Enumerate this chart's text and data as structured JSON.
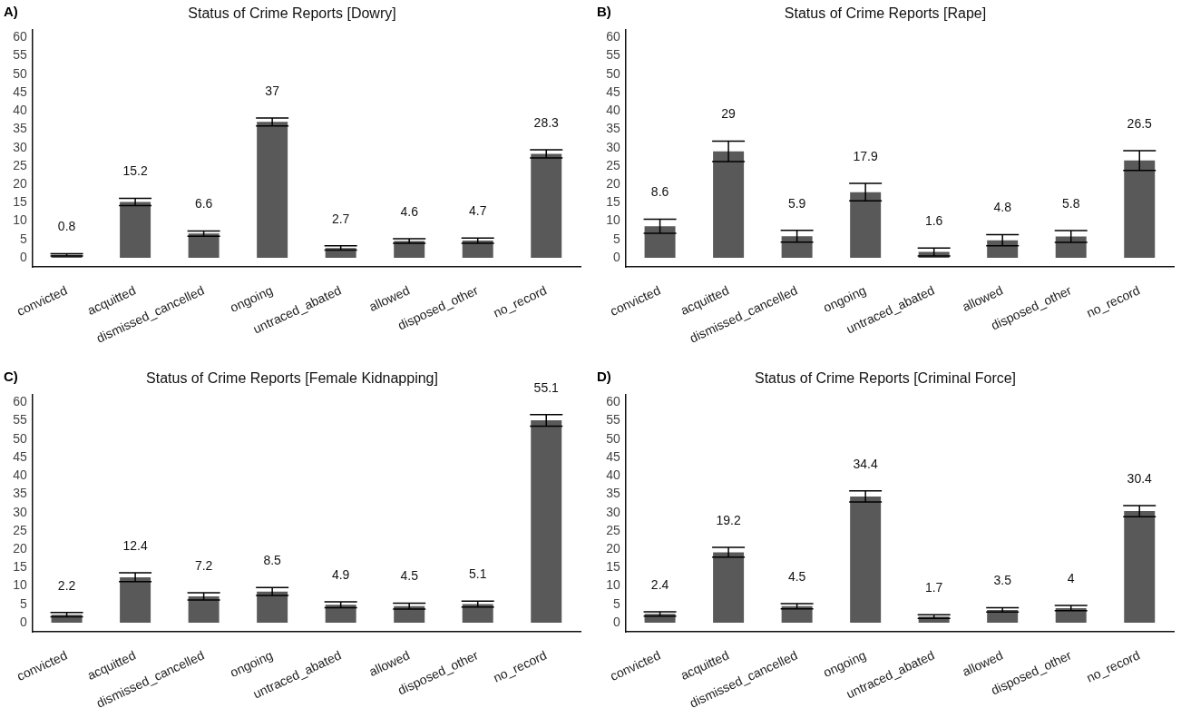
{
  "chart_data": [
    {
      "type": "bar",
      "title": "Status of Crime Reports [Dowry]",
      "annotations": [
        "A)"
      ],
      "categories": [
        "convicted",
        "acquitted",
        "dismissed_cancelled",
        "ongoing",
        "untraced_abated",
        "allowed",
        "disposed_other",
        "no_record"
      ],
      "color": "#595959",
      "values": [
        0.8,
        15.2,
        6.6,
        37,
        2.7,
        4.6,
        4.7,
        28.3
      ],
      "errors": [
        0.3,
        1.0,
        0.7,
        1.1,
        0.6,
        0.6,
        0.7,
        1.1
      ],
      "data_labels": true,
      "ylim": [
        -2.5,
        62
      ],
      "yticks": [
        0,
        5,
        10,
        15,
        20,
        25,
        30,
        35,
        40,
        45,
        50,
        55,
        60
      ],
      "grid": false,
      "legend": false
    },
    {
      "type": "bar",
      "title": "Status of Crime Reports [Rape]",
      "annotations": [
        "B)"
      ],
      "categories": [
        "convicted",
        "acquitted",
        "dismissed_cancelled",
        "ongoing",
        "untraced_abated",
        "allowed",
        "disposed_other",
        "no_record"
      ],
      "color": "#595959",
      "values": [
        8.6,
        29,
        5.9,
        17.9,
        1.6,
        4.8,
        5.8,
        26.5
      ],
      "errors": [
        1.9,
        2.8,
        1.6,
        2.4,
        1.1,
        1.5,
        1.6,
        2.7
      ],
      "data_labels": true,
      "ylim": [
        -2.5,
        62
      ],
      "yticks": [
        0,
        5,
        10,
        15,
        20,
        25,
        30,
        35,
        40,
        45,
        50,
        55,
        60
      ],
      "grid": false,
      "legend": false
    },
    {
      "type": "bar",
      "title": "Status of Crime Reports [Female Kidnapping]",
      "annotations": [
        "C)"
      ],
      "categories": [
        "convicted",
        "acquitted",
        "dismissed_cancelled",
        "ongoing",
        "untraced_abated",
        "allowed",
        "disposed_other",
        "no_record"
      ],
      "color": "#595959",
      "values": [
        2.2,
        12.4,
        7.2,
        8.5,
        4.9,
        4.5,
        5.1,
        55.1
      ],
      "errors": [
        0.6,
        1.2,
        1.0,
        1.1,
        0.8,
        0.8,
        0.8,
        1.6
      ],
      "data_labels": true,
      "ylim": [
        -2.5,
        62
      ],
      "yticks": [
        0,
        5,
        10,
        15,
        20,
        25,
        30,
        35,
        40,
        45,
        50,
        55,
        60
      ],
      "grid": false,
      "legend": false
    },
    {
      "type": "bar",
      "title": "Status of Crime Reports [Criminal Force]",
      "annotations": [
        "D)"
      ],
      "categories": [
        "convicted",
        "acquitted",
        "dismissed_cancelled",
        "ongoing",
        "untraced_abated",
        "allowed",
        "disposed_other",
        "no_record"
      ],
      "color": "#595959",
      "values": [
        2.4,
        19.2,
        4.5,
        34.4,
        1.7,
        3.5,
        4,
        30.4
      ],
      "errors": [
        0.6,
        1.3,
        0.7,
        1.5,
        0.5,
        0.6,
        0.7,
        1.5
      ],
      "data_labels": true,
      "ylim": [
        -2.5,
        62
      ],
      "yticks": [
        0,
        5,
        10,
        15,
        20,
        25,
        30,
        35,
        40,
        45,
        50,
        55,
        60
      ],
      "grid": false,
      "legend": false
    }
  ]
}
